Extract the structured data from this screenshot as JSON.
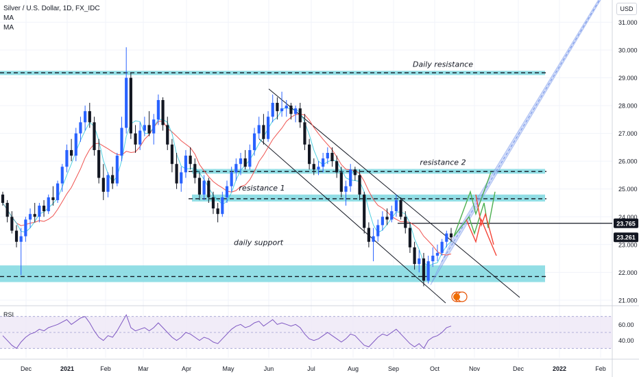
{
  "legend": {
    "symbol": "Silver / U.S. Dollar, 1D, FX_IDC",
    "ma1": "MA",
    "ma2": "MA"
  },
  "currency": "USD",
  "colors": {
    "up": "#2962ff",
    "down": "#131722",
    "zone": "#7fd8e0",
    "channel": "#90aaf0",
    "ma_fast": "#ef5350",
    "ma_slow": "#26c6da",
    "rsi_line": "#7e57c2",
    "rsi_band": "#ede7f6",
    "forecast_up": "#4caf50",
    "forecast_down": "#f44336"
  },
  "chart_data": {
    "type": "candlestick",
    "title": "Silver / U.S. Dollar, 1D, FX_IDC",
    "y_ticks": [
      "31.000",
      "30.000",
      "29.000",
      "28.000",
      "27.000",
      "26.000",
      "25.000",
      "24.000",
      "23.000",
      "22.000",
      "21.000"
    ],
    "ylim": [
      20.8,
      31.8
    ],
    "x_ticks": [
      "Dec",
      "2021",
      "Feb",
      "Mar",
      "Apr",
      "May",
      "Jun",
      "Jul",
      "Aug",
      "Sep",
      "Oct",
      "Nov",
      "Dec",
      "2022",
      "Feb"
    ],
    "price_labels": [
      {
        "value": 23.765,
        "text": "23.765",
        "style": "dark"
      },
      {
        "value": 23.261,
        "text": "23.261",
        "style": "dark"
      }
    ],
    "zones": [
      {
        "from": 29.1,
        "to": 29.25,
        "mid": 29.18,
        "label": "Daily resistance",
        "label_x": "Jun-Aug"
      },
      {
        "from": 25.55,
        "to": 25.72,
        "mid": 25.63,
        "label": "resistance 2"
      },
      {
        "from": 24.55,
        "to": 24.8,
        "mid": 24.65,
        "label": "resistance 1"
      },
      {
        "from": 21.65,
        "to": 22.25,
        "mid": 21.85,
        "label": "daily support"
      }
    ],
    "candles": [
      [
        24.8,
        24.9,
        24.4,
        24.5
      ],
      [
        24.5,
        24.6,
        23.8,
        24.0
      ],
      [
        24.0,
        24.2,
        23.4,
        23.5
      ],
      [
        23.5,
        23.7,
        22.9,
        23.1
      ],
      [
        23.1,
        23.6,
        21.9,
        23.3
      ],
      [
        23.3,
        24.0,
        23.1,
        23.9
      ],
      [
        23.9,
        24.3,
        23.6,
        24.1
      ],
      [
        24.1,
        24.5,
        23.8,
        24.0
      ],
      [
        24.0,
        24.5,
        23.8,
        24.4
      ],
      [
        24.4,
        24.6,
        24.0,
        24.2
      ],
      [
        24.2,
        24.8,
        24.1,
        24.7
      ],
      [
        24.7,
        25.1,
        24.4,
        24.6
      ],
      [
        24.6,
        25.3,
        24.5,
        25.2
      ],
      [
        25.2,
        25.9,
        24.9,
        25.8
      ],
      [
        25.8,
        26.6,
        25.6,
        26.4
      ],
      [
        26.4,
        26.8,
        26.0,
        26.2
      ],
      [
        26.2,
        27.2,
        26.0,
        27.0
      ],
      [
        27.0,
        27.6,
        26.7,
        27.4
      ],
      [
        27.4,
        28.0,
        27.1,
        27.8
      ],
      [
        27.8,
        28.1,
        27.2,
        27.4
      ],
      [
        27.4,
        27.6,
        26.2,
        26.4
      ],
      [
        26.4,
        26.8,
        25.2,
        25.4
      ],
      [
        25.4,
        25.9,
        24.6,
        24.9
      ],
      [
        24.9,
        25.6,
        24.7,
        25.5
      ],
      [
        25.5,
        25.8,
        25.0,
        25.2
      ],
      [
        25.2,
        26.3,
        25.1,
        26.2
      ],
      [
        26.2,
        27.6,
        26.0,
        27.2
      ],
      [
        27.2,
        30.1,
        27.0,
        29.0
      ],
      [
        29.0,
        29.2,
        26.8,
        27.0
      ],
      [
        27.0,
        27.3,
        26.3,
        26.6
      ],
      [
        26.6,
        27.4,
        26.4,
        27.1
      ],
      [
        27.1,
        27.6,
        26.9,
        27.3
      ],
      [
        27.3,
        27.8,
        26.9,
        27.0
      ],
      [
        27.0,
        27.7,
        26.6,
        27.5
      ],
      [
        27.5,
        28.4,
        27.3,
        28.2
      ],
      [
        28.2,
        28.3,
        27.1,
        27.3
      ],
      [
        27.3,
        27.6,
        26.4,
        26.6
      ],
      [
        26.6,
        26.8,
        25.6,
        25.9
      ],
      [
        25.9,
        26.3,
        25.0,
        25.2
      ],
      [
        25.2,
        25.8,
        24.9,
        25.6
      ],
      [
        25.6,
        26.4,
        25.4,
        26.2
      ],
      [
        26.2,
        26.5,
        25.7,
        25.9
      ],
      [
        25.9,
        26.1,
        25.2,
        25.4
      ],
      [
        25.4,
        25.6,
        24.6,
        24.8
      ],
      [
        24.8,
        25.5,
        24.6,
        25.3
      ],
      [
        25.3,
        25.4,
        24.5,
        24.7
      ],
      [
        24.7,
        24.9,
        24.1,
        24.3
      ],
      [
        24.3,
        24.5,
        23.8,
        24.1
      ],
      [
        24.1,
        24.9,
        24.0,
        24.7
      ],
      [
        24.7,
        25.3,
        24.5,
        25.1
      ],
      [
        25.1,
        25.8,
        24.9,
        25.6
      ],
      [
        25.6,
        26.1,
        25.3,
        25.9
      ],
      [
        25.9,
        26.3,
        25.5,
        26.1
      ],
      [
        26.1,
        26.4,
        25.7,
        25.8
      ],
      [
        25.8,
        26.6,
        25.7,
        26.4
      ],
      [
        26.4,
        27.2,
        26.2,
        27.0
      ],
      [
        27.0,
        27.6,
        26.8,
        27.3
      ],
      [
        27.3,
        27.7,
        26.6,
        26.8
      ],
      [
        26.8,
        27.8,
        26.7,
        27.6
      ],
      [
        27.6,
        28.4,
        27.4,
        28.1
      ],
      [
        28.1,
        28.3,
        27.5,
        27.8
      ],
      [
        27.8,
        28.5,
        27.6,
        27.9
      ],
      [
        27.9,
        28.2,
        27.6,
        28.0
      ],
      [
        28.0,
        28.1,
        27.5,
        27.7
      ],
      [
        27.7,
        28.0,
        27.4,
        27.9
      ],
      [
        27.9,
        28.1,
        27.2,
        27.4
      ],
      [
        27.4,
        27.7,
        26.4,
        26.6
      ],
      [
        26.6,
        26.8,
        25.7,
        25.9
      ],
      [
        25.9,
        26.1,
        25.5,
        25.7
      ],
      [
        25.7,
        26.0,
        25.5,
        25.8
      ],
      [
        25.8,
        26.3,
        25.6,
        26.1
      ],
      [
        26.1,
        26.5,
        25.9,
        26.3
      ],
      [
        26.3,
        26.5,
        25.8,
        26.0
      ],
      [
        26.0,
        26.2,
        25.4,
        25.6
      ],
      [
        25.6,
        25.8,
        24.7,
        24.9
      ],
      [
        24.9,
        25.3,
        24.4,
        25.1
      ],
      [
        25.1,
        25.9,
        24.9,
        25.7
      ],
      [
        25.7,
        25.8,
        25.3,
        25.5
      ],
      [
        25.5,
        25.7,
        24.6,
        24.8
      ],
      [
        24.8,
        24.9,
        23.4,
        23.6
      ],
      [
        23.6,
        23.8,
        22.9,
        23.1
      ],
      [
        23.1,
        23.6,
        22.4,
        23.3
      ],
      [
        23.3,
        23.9,
        23.1,
        23.7
      ],
      [
        23.7,
        24.2,
        23.5,
        24.0
      ],
      [
        24.0,
        24.3,
        23.7,
        23.9
      ],
      [
        23.9,
        24.4,
        23.8,
        24.2
      ],
      [
        24.2,
        24.8,
        24.0,
        24.6
      ],
      [
        24.6,
        24.7,
        23.9,
        24.0
      ],
      [
        24.0,
        24.2,
        23.4,
        23.6
      ],
      [
        23.6,
        23.8,
        22.7,
        22.9
      ],
      [
        22.9,
        23.1,
        22.1,
        22.3
      ],
      [
        22.3,
        22.8,
        22.0,
        22.5
      ],
      [
        22.5,
        22.7,
        21.5,
        21.7
      ],
      [
        21.7,
        22.6,
        21.6,
        22.4
      ],
      [
        22.4,
        22.9,
        22.2,
        22.6
      ],
      [
        22.6,
        23.0,
        22.4,
        22.7
      ],
      [
        22.7,
        23.2,
        22.6,
        23.1
      ],
      [
        23.1,
        23.5,
        22.9,
        23.4
      ],
      [
        23.4,
        23.6,
        23.1,
        23.26
      ]
    ],
    "channel_down": {
      "upper": [
        [
          "Jun",
          28.6
        ],
        [
          "Nov",
          22.1
        ]
      ],
      "lower": [
        [
          "May",
          26.8
        ],
        [
          "Oct",
          21.3
        ]
      ]
    },
    "channel_up": {
      "lower": [
        [
          "Oct",
          21.6
        ],
        [
          "Feb 2022",
          31.4
        ]
      ],
      "upper": [
        [
          "Oct",
          22.6
        ],
        [
          "Feb 2022",
          32.0
        ]
      ]
    },
    "rsi": {
      "label": "RSI",
      "y_ticks": [
        "60.00",
        "40.00"
      ],
      "upper_band": 70,
      "lower_band": 30,
      "values": [
        46,
        40,
        34,
        30,
        38,
        44,
        48,
        50,
        54,
        52,
        56,
        58,
        60,
        63,
        66,
        60,
        64,
        68,
        70,
        62,
        52,
        44,
        40,
        46,
        44,
        52,
        62,
        72,
        56,
        52,
        54,
        56,
        52,
        56,
        62,
        56,
        50,
        44,
        40,
        44,
        50,
        48,
        44,
        40,
        44,
        42,
        38,
        36,
        42,
        48,
        54,
        58,
        60,
        56,
        58,
        62,
        64,
        58,
        62,
        66,
        60,
        62,
        60,
        58,
        60,
        56,
        48,
        42,
        40,
        42,
        46,
        50,
        46,
        42,
        38,
        42,
        48,
        46,
        40,
        34,
        32,
        38,
        44,
        48,
        46,
        50,
        54,
        48,
        42,
        36,
        32,
        36,
        30,
        40,
        44,
        46,
        50,
        56,
        58
      ]
    }
  }
}
